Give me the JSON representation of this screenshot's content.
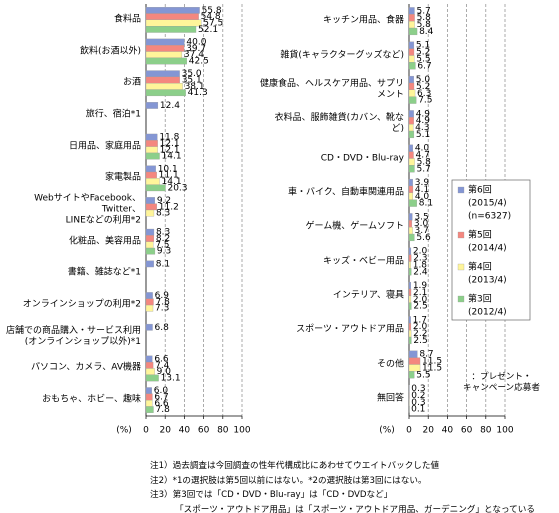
{
  "chart_data": [
    {
      "type": "bar",
      "orientation": "horizontal",
      "xlabel": "(%)",
      "xlim": [
        0,
        100
      ],
      "xticks": [
        0,
        20,
        40,
        60,
        80,
        100
      ],
      "grid": true,
      "categories": [
        "食料品",
        "飲料(お酒以外)",
        "お酒",
        "旅行、宿泊*1",
        "日用品、家庭用品",
        "家電製品",
        "WebサイトやFacebook、Twitter、\nLINEなどの利用*2",
        "化粧品、美容用品",
        "書籍、雑誌など*1",
        "オンラインショップの利用*2",
        "店舗での商品購入・サービス利用\n(オンラインショップ以外)*1",
        "パソコン、カメラ、AV機器",
        "おもちゃ、ホビー、趣味"
      ],
      "series": [
        {
          "name": "第6回",
          "period": "(2015/4)",
          "n": "(n=6327)",
          "color": "#8496d4",
          "values": [
            55.8,
            40.0,
            35.0,
            12.4,
            11.8,
            10.1,
            9.2,
            8.3,
            8.1,
            6.9,
            6.8,
            6.6,
            6.0
          ],
          "value_labels": [
            "55.8",
            "40.0",
            "35.0",
            "12.4",
            "11.8",
            "10.1",
            "9.2",
            "8.3",
            "8.1",
            "6.9",
            "6.8",
            "6.6",
            "6.0"
          ]
        },
        {
          "name": "第5回",
          "period": "(2014/4)",
          "color": "#f4877f",
          "values": [
            54.8,
            39.7,
            35.1,
            null,
            12.1,
            11.1,
            11.2,
            8.2,
            null,
            7.8,
            null,
            7.4,
            6.7
          ],
          "value_labels": [
            "54.8",
            "39.7",
            "35.1",
            null,
            "12.1",
            "11.1",
            "11.2",
            "8.2",
            null,
            "7.8",
            null,
            "7.4",
            "6.7"
          ]
        },
        {
          "name": "第4回",
          "period": "(2013/4)",
          "color": "#fff59a",
          "values": [
            57.5,
            37.4,
            38.1,
            null,
            12.1,
            14.1,
            8.3,
            7.5,
            null,
            7.3,
            null,
            9.0,
            6.6
          ],
          "value_labels": [
            "57.5",
            "37.4",
            "38.1",
            null,
            "12.1",
            "14.1",
            "8.3",
            "7.5",
            null,
            "7.3",
            null,
            "9.0",
            "6.6"
          ]
        },
        {
          "name": "第3回",
          "period": "(2012/4)",
          "color": "#8ccf8a",
          "values": [
            52.1,
            42.5,
            41.3,
            null,
            14.1,
            20.3,
            null,
            9.3,
            null,
            null,
            null,
            13.1,
            7.8
          ],
          "value_labels": [
            "52.1",
            "42.5",
            "41.3",
            null,
            "14.1",
            "20.3",
            null,
            "9.3",
            null,
            null,
            null,
            "13.1",
            "7.8"
          ]
        }
      ]
    },
    {
      "type": "bar",
      "orientation": "horizontal",
      "xlabel": "(%)",
      "xlim": [
        0,
        100
      ],
      "xticks": [
        0,
        20,
        40,
        60,
        80,
        100
      ],
      "grid": true,
      "categories": [
        "キッチン用品、食器",
        "雑貨(キャラクターグッズなど)",
        "健康食品、ヘルスケア用品、サプリメント",
        "衣料品、服飾雑貨(カバン、靴な\nど)",
        "CD・DVD・Blu-ray",
        "車・バイク、自動車関連用品",
        "ゲーム機、ゲームソフト",
        "キッズ・ベビー用品",
        "インテリア、寝具",
        "スポーツ・アウトドア用品",
        "その他",
        "無回答"
      ],
      "series": [
        {
          "color": "#8496d4",
          "values": [
            5.7,
            5.1,
            5.0,
            4.9,
            4.0,
            3.9,
            3.5,
            2.0,
            1.9,
            1.7,
            8.7,
            0.3
          ],
          "value_labels": [
            "5.7",
            "5.1",
            "5.0",
            "4.9",
            "4.0",
            "3.9",
            "3.5",
            "2.0",
            "1.9",
            "1.7",
            "8.7",
            "0.3"
          ]
        },
        {
          "color": "#f4877f",
          "values": [
            5.8,
            5.2,
            5.2,
            4.9,
            4.7,
            4.1,
            3.0,
            2.3,
            2.1,
            2.0,
            11.5,
            0.2
          ],
          "value_labels": [
            "5.8",
            "5.2",
            "5.2",
            "4.9",
            "4.7",
            "4.1",
            "3.0",
            "2.3",
            "2.1",
            "2.0",
            "11.5",
            "0.2"
          ]
        },
        {
          "color": "#fff59a",
          "values": [
            5.8,
            5.5,
            6.3,
            4.3,
            5.8,
            4.0,
            3.7,
            1.8,
            2.0,
            2.2,
            11.5,
            0.3
          ],
          "value_labels": [
            "5.8",
            "5.5",
            "6.3",
            "4.3",
            "5.8",
            "4.0",
            "3.7",
            "1.8",
            "2.0",
            "2.2",
            "11.5",
            "0.3"
          ]
        },
        {
          "color": "#8ccf8a",
          "values": [
            8.4,
            6.7,
            7.5,
            5.1,
            5.7,
            8.1,
            5.6,
            2.4,
            2.5,
            2.5,
            5.5,
            0.1
          ],
          "value_labels": [
            "8.4",
            "6.7",
            "7.5",
            "5.1",
            "5.7",
            "8.1",
            "5.6",
            "2.4",
            "2.5",
            "2.5",
            "5.5",
            "0.1"
          ]
        }
      ],
      "annotation": "：プレゼント・\nキャンペーン応募者"
    }
  ],
  "notes": [
    "注1）過去調査は今回調査の性年代構成比にあわせてウエイトバックした値",
    "注2）*1の選択肢は第5回以前にはない。*2の選択肢は第3回にはない。",
    "注3）第3回では「CD・DVD・Blu-ray」は「CD・DVDなど」",
    "「スポーツ・アウトドア用品」は「スポーツ・アウトドア用品、ガーデニング」となっている"
  ]
}
